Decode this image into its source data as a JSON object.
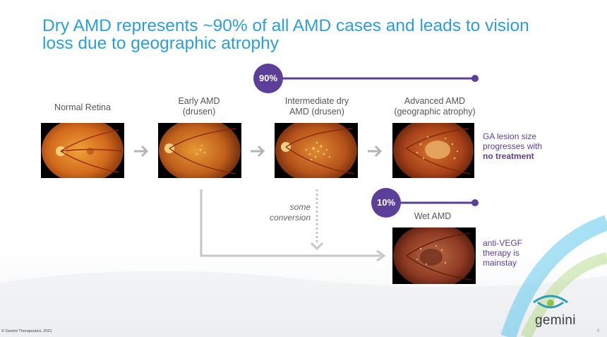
{
  "slide": {
    "title": "Dry AMD represents ~90% of all AMD cases and leads to vision loss due to geographic atrophy",
    "stages": [
      {
        "label": "Normal Retina"
      },
      {
        "label": "Early AMD\n(drusen)"
      },
      {
        "label": "Intermediate dry\nAMD (drusen)"
      },
      {
        "label": "Advanced AMD\n(geographic atrophy)"
      }
    ],
    "dry_pct": "90%",
    "wet_pct": "10%",
    "wet_label": "Wet AMD",
    "ga_note_1": "GA lesion size progresses with ",
    "ga_note_bold": "no treatment",
    "wet_note": "anti-VEGF therapy is mainstay",
    "conversion_note": "some conversion",
    "copyright": "© Gemini Therapeutics, 2021",
    "page_number": "6",
    "logo_text": "gemini"
  },
  "colors": {
    "title": "#2b9fdc",
    "accent_purple": "#5b3f99",
    "arrow_gray": "#b5b5b5",
    "logo_teal": "#2a9fb5",
    "logo_green": "#8bc34a"
  }
}
